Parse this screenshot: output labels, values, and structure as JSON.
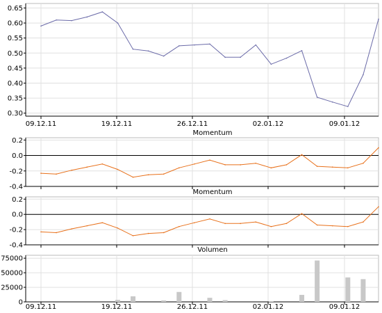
{
  "chart_data": [
    {
      "type": "line",
      "title": "",
      "x": [
        "09.12.11",
        "12.12.11",
        "13.12.11",
        "14.12.11",
        "15.12.11",
        "16.12.11",
        "19.12.11",
        "20.12.11",
        "21.12.11",
        "22.12.11",
        "23.12.11",
        "27.12.11",
        "28.12.11",
        "29.12.11",
        "30.12.11",
        "02.01.12",
        "03.01.12",
        "04.01.12",
        "05.01.12",
        "06.01.12",
        "09.01.12",
        "10.01.12",
        "11.01.12"
      ],
      "series": [
        {
          "name": "",
          "color": "#6a6aa8",
          "values": [
            0.59,
            0.61,
            0.608,
            0.62,
            0.637,
            0.6,
            0.513,
            0.507,
            0.49,
            0.524,
            0.527,
            0.53,
            0.486,
            0.486,
            0.527,
            0.463,
            0.483,
            0.508,
            0.353,
            0.337,
            0.322,
            0.428,
            0.613
          ]
        }
      ],
      "xticks": [
        "09.12.11",
        "19.12.11",
        "26.12.11",
        "02.01.12",
        "09.01.12"
      ],
      "yticks": [
        "0.30",
        "0.35",
        "0.40",
        "0.45",
        "0.50",
        "0.55",
        "0.60",
        "0.65"
      ],
      "ylim": [
        0.29,
        0.665
      ],
      "grid": true
    },
    {
      "type": "line",
      "title": "Momentum",
      "x": [
        "09.12.11",
        "12.12.11",
        "13.12.11",
        "14.12.11",
        "15.12.11",
        "16.12.11",
        "19.12.11",
        "20.12.11",
        "21.12.11",
        "22.12.11",
        "23.12.11",
        "27.12.11",
        "28.12.11",
        "29.12.11",
        "30.12.11",
        "02.01.12",
        "03.01.12",
        "04.01.12",
        "05.01.12",
        "06.01.12",
        "09.01.12",
        "10.01.12",
        "11.01.12"
      ],
      "series": [
        {
          "name": "",
          "color": "#e8701a",
          "values": [
            -0.23,
            -0.24,
            -0.19,
            -0.15,
            -0.11,
            -0.18,
            -0.28,
            -0.25,
            -0.24,
            -0.16,
            -0.11,
            -0.06,
            -0.12,
            -0.12,
            -0.1,
            -0.16,
            -0.12,
            0.01,
            -0.14,
            -0.15,
            -0.16,
            -0.1,
            0.1
          ]
        }
      ],
      "yticks": [
        "-0.4",
        "-0.2",
        "0.0",
        "0.2"
      ],
      "ylim": [
        -0.4,
        0.23
      ],
      "zero_line": 0,
      "grid": true
    },
    {
      "type": "line",
      "title": "Momentum",
      "x": [
        "09.12.11",
        "12.12.11",
        "13.12.11",
        "14.12.11",
        "15.12.11",
        "16.12.11",
        "19.12.11",
        "20.12.11",
        "21.12.11",
        "22.12.11",
        "23.12.11",
        "27.12.11",
        "28.12.11",
        "29.12.11",
        "30.12.11",
        "02.01.12",
        "03.01.12",
        "04.01.12",
        "05.01.12",
        "06.01.12",
        "09.01.12",
        "10.01.12",
        "11.01.12"
      ],
      "series": [
        {
          "name": "",
          "color": "#e8701a",
          "values": [
            -0.23,
            -0.24,
            -0.19,
            -0.15,
            -0.11,
            -0.18,
            -0.28,
            -0.25,
            -0.24,
            -0.16,
            -0.11,
            -0.06,
            -0.12,
            -0.12,
            -0.1,
            -0.16,
            -0.12,
            0.01,
            -0.14,
            -0.15,
            -0.16,
            -0.1,
            0.1
          ]
        }
      ],
      "yticks": [
        "-0.4",
        "-0.2",
        "0.0",
        "0.2"
      ],
      "ylim": [
        -0.4,
        0.23
      ],
      "zero_line": 0,
      "grid": true
    },
    {
      "type": "bar",
      "title": "Volumen",
      "x": [
        "09.12.11",
        "12.12.11",
        "13.12.11",
        "14.12.11",
        "15.12.11",
        "16.12.11",
        "19.12.11",
        "20.12.11",
        "21.12.11",
        "22.12.11",
        "23.12.11",
        "27.12.11",
        "28.12.11",
        "29.12.11",
        "30.12.11",
        "02.01.12",
        "03.01.12",
        "04.01.12",
        "05.01.12",
        "06.01.12",
        "09.01.12",
        "10.01.12",
        "11.01.12"
      ],
      "series": [
        {
          "name": "",
          "color": "#c8c8c8",
          "values": [
            0,
            0,
            0,
            0,
            0,
            3500,
            9500,
            0,
            2500,
            17000,
            0,
            7000,
            3000,
            0,
            0,
            1000,
            0,
            12000,
            71000,
            0,
            42000,
            39000,
            0
          ]
        }
      ],
      "xticks": [
        "09.12.11",
        "19.12.11",
        "26.12.11",
        "02.01.12",
        "09.01.12"
      ],
      "yticks": [
        "0",
        "25000",
        "50000",
        "75000"
      ],
      "ylim": [
        0,
        80000
      ],
      "grid": true
    }
  ]
}
